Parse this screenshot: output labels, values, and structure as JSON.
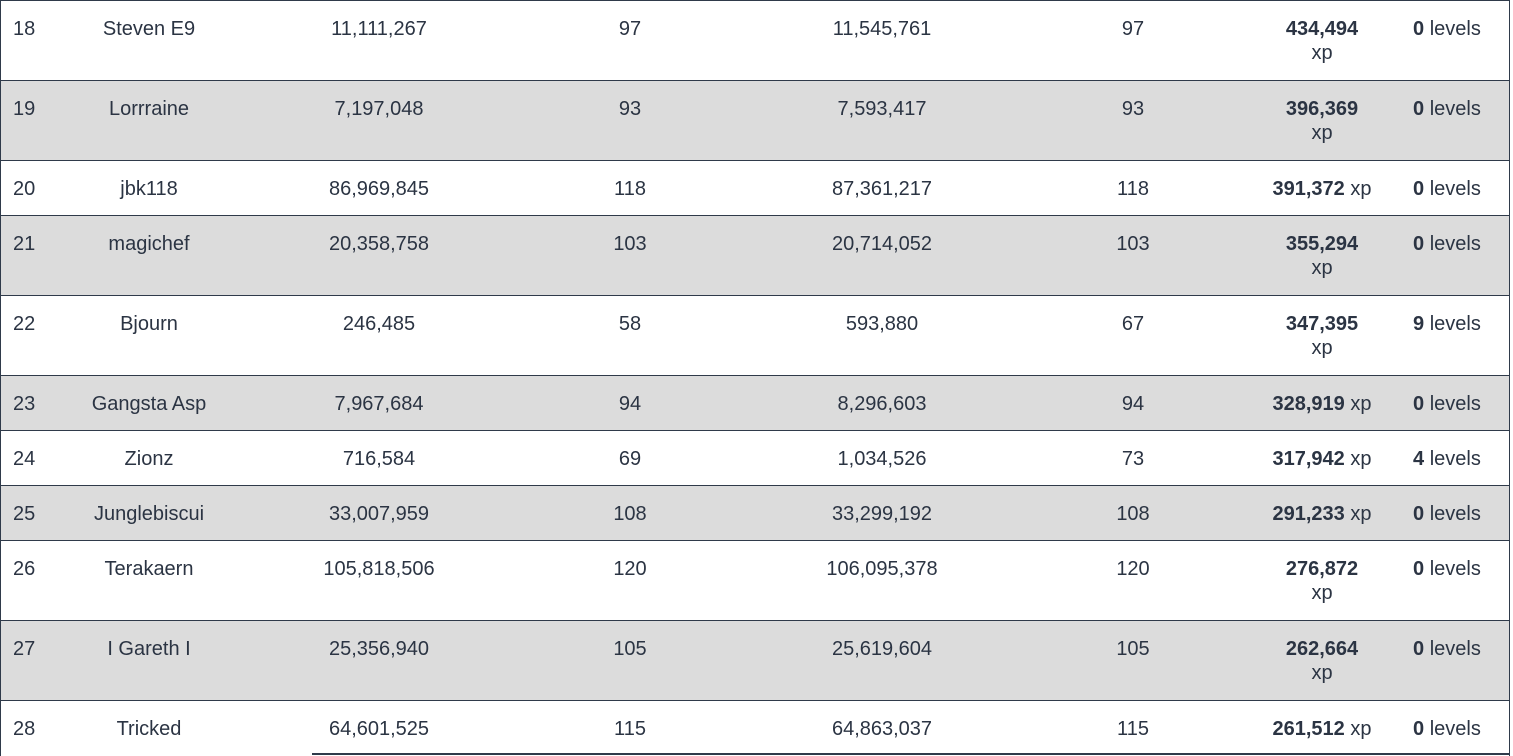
{
  "table": {
    "rows": [
      {
        "rank": "18",
        "name": "Steven E9",
        "value1": "11,111,267",
        "level1": "97",
        "value2": "11,545,761",
        "level2": "97",
        "xp": "434,494",
        "xp_unit": "xp",
        "levels": "0",
        "levels_unit": "levels"
      },
      {
        "rank": "19",
        "name": "Lorrraine",
        "value1": "7,197,048",
        "level1": "93",
        "value2": "7,593,417",
        "level2": "93",
        "xp": "396,369",
        "xp_unit": "xp",
        "levels": "0",
        "levels_unit": "levels"
      },
      {
        "rank": "20",
        "name": "jbk118",
        "value1": "86,969,845",
        "level1": "118",
        "value2": "87,361,217",
        "level2": "118",
        "xp": "391,372",
        "xp_unit": "xp",
        "levels": "0",
        "levels_unit": "levels"
      },
      {
        "rank": "21",
        "name": "magichef",
        "value1": "20,358,758",
        "level1": "103",
        "value2": "20,714,052",
        "level2": "103",
        "xp": "355,294",
        "xp_unit": "xp",
        "levels": "0",
        "levels_unit": "levels"
      },
      {
        "rank": "22",
        "name": "Bjourn",
        "value1": "246,485",
        "level1": "58",
        "value2": "593,880",
        "level2": "67",
        "xp": "347,395",
        "xp_unit": "xp",
        "levels": "9",
        "levels_unit": "levels"
      },
      {
        "rank": "23",
        "name": "Gangsta Asp",
        "value1": "7,967,684",
        "level1": "94",
        "value2": "8,296,603",
        "level2": "94",
        "xp": "328,919",
        "xp_unit": "xp",
        "levels": "0",
        "levels_unit": "levels"
      },
      {
        "rank": "24",
        "name": "Zionz",
        "value1": "716,584",
        "level1": "69",
        "value2": "1,034,526",
        "level2": "73",
        "xp": "317,942",
        "xp_unit": "xp",
        "levels": "4",
        "levels_unit": "levels"
      },
      {
        "rank": "25",
        "name": "Junglebiscui",
        "value1": "33,007,959",
        "level1": "108",
        "value2": "33,299,192",
        "level2": "108",
        "xp": "291,233",
        "xp_unit": "xp",
        "levels": "0",
        "levels_unit": "levels"
      },
      {
        "rank": "26",
        "name": "Terakaern",
        "value1": "105,818,506",
        "level1": "120",
        "value2": "106,095,378",
        "level2": "120",
        "xp": "276,872",
        "xp_unit": "xp",
        "levels": "0",
        "levels_unit": "levels"
      },
      {
        "rank": "27",
        "name": "I Gareth I",
        "value1": "25,356,940",
        "level1": "105",
        "value2": "25,619,604",
        "level2": "105",
        "xp": "262,664",
        "xp_unit": "xp",
        "levels": "0",
        "levels_unit": "levels"
      },
      {
        "rank": "28",
        "name": "Tricked",
        "value1": "64,601,525",
        "level1": "115",
        "value2": "64,863,037",
        "level2": "115",
        "xp": "261,512",
        "xp_unit": "xp",
        "levels": "0",
        "levels_unit": "levels"
      }
    ]
  }
}
